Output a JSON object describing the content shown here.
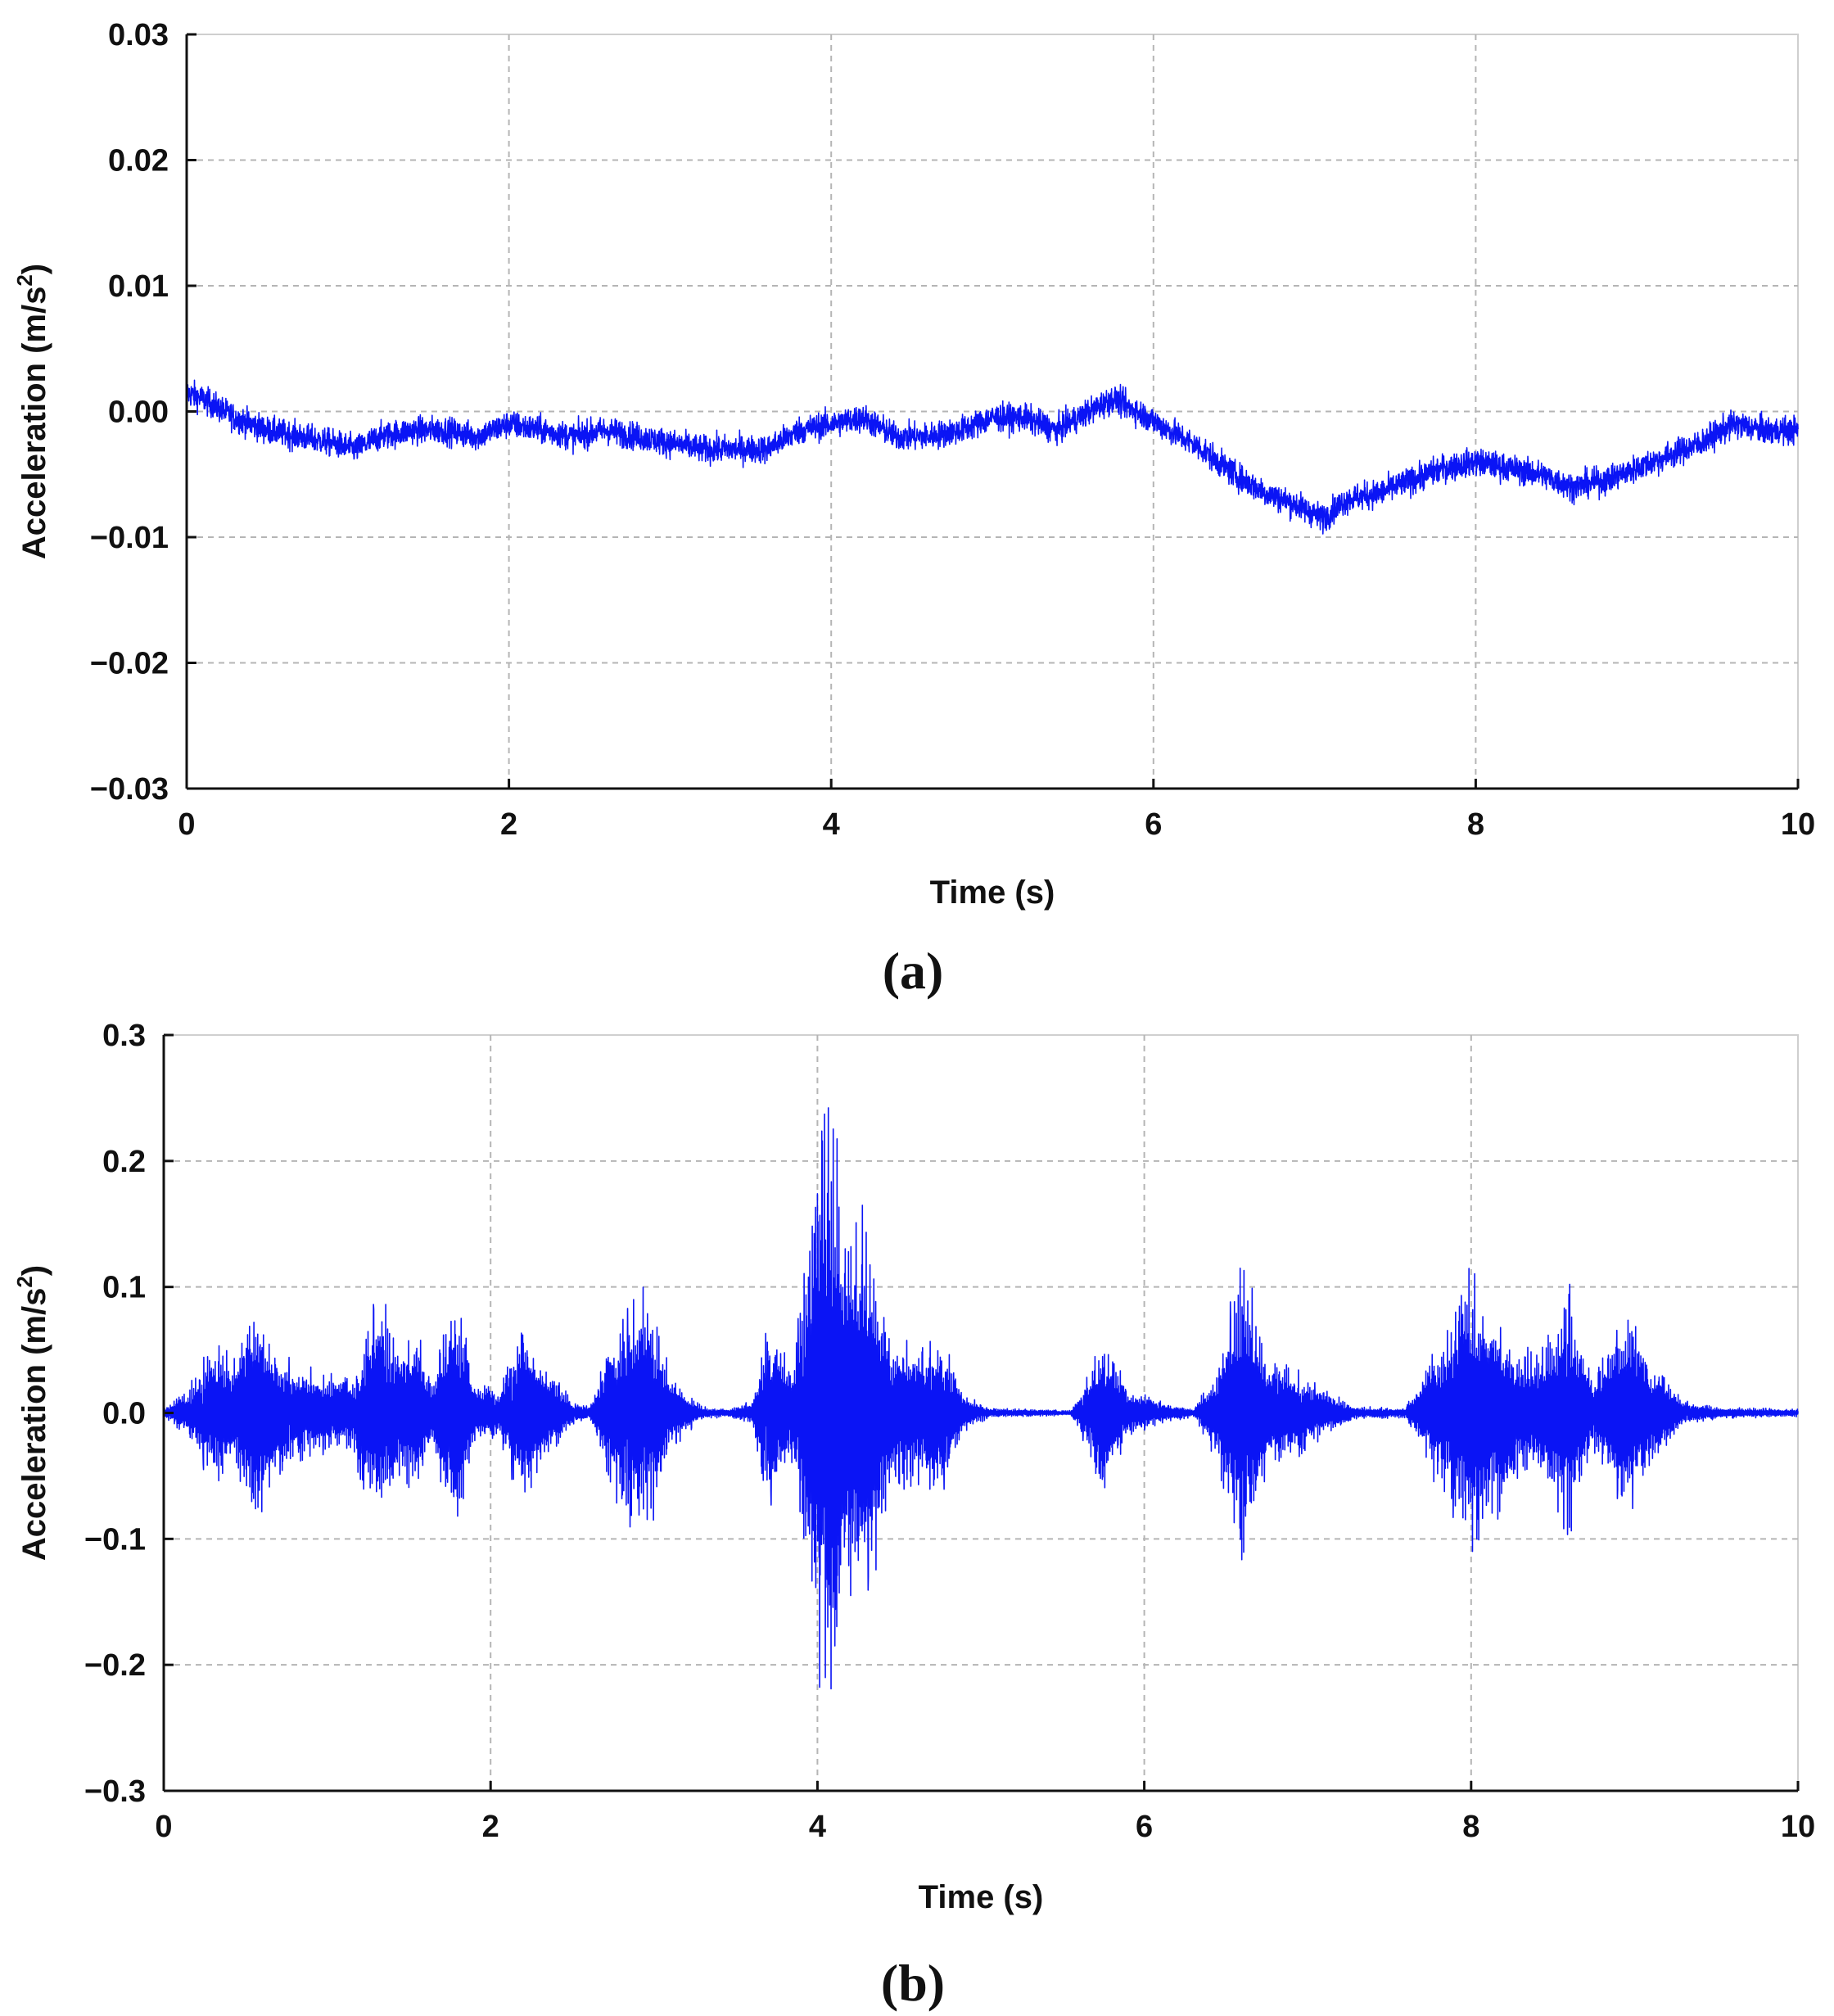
{
  "figure": {
    "panels": [
      "(a)",
      "(b)"
    ]
  },
  "colors": {
    "series": "#0a14f5",
    "axis": "#111111",
    "grid": "#b5b5b5"
  },
  "chart_data": [
    {
      "type": "line",
      "panel_label": "(a)",
      "xlabel": "Time (s)",
      "ylabel_main": "Acceleration (m/s",
      "ylabel_sup": "2",
      "ylabel_close": ")",
      "xlim": [
        0,
        10
      ],
      "ylim": [
        -0.03,
        0.03
      ],
      "xticks": [
        0,
        2,
        4,
        6,
        8,
        10
      ],
      "yticks": [
        -0.03,
        -0.02,
        -0.01,
        0.0,
        0.01,
        0.02,
        0.03
      ],
      "xtick_labels": [
        "0",
        "2",
        "4",
        "6",
        "8",
        "10"
      ],
      "ytick_labels": [
        "−0.03",
        "−0.02",
        "−0.01",
        "0.00",
        "0.01",
        "0.02",
        "0.03"
      ],
      "grid": true,
      "series": [
        {
          "x": [
            0,
            0.1,
            0.3,
            0.5,
            0.7,
            0.9,
            1.05,
            1.2,
            1.4,
            1.6,
            1.8,
            2.0,
            2.2,
            2.4,
            2.6,
            2.8,
            3.0,
            3.2,
            3.4,
            3.6,
            3.8,
            4.0,
            4.2,
            4.4,
            4.6,
            4.8,
            5.0,
            5.2,
            5.4,
            5.6,
            5.75,
            5.9,
            6.1,
            6.3,
            6.5,
            6.7,
            6.9,
            7.05,
            7.2,
            7.4,
            7.6,
            7.8,
            8.0,
            8.2,
            8.4,
            8.6,
            8.8,
            9.0,
            9.2,
            9.4,
            9.6,
            9.8,
            10.0
          ],
          "y": [
            0.0015,
            0.001,
            -0.0005,
            -0.0015,
            -0.002,
            -0.0025,
            -0.003,
            -0.002,
            -0.0015,
            -0.0015,
            -0.002,
            -0.001,
            -0.0015,
            -0.002,
            -0.0015,
            -0.002,
            -0.0025,
            -0.003,
            -0.003,
            -0.003,
            -0.0015,
            -0.001,
            -0.0005,
            -0.002,
            -0.002,
            -0.0015,
            -0.0005,
            -0.0005,
            -0.0015,
            0.0,
            0.001,
            0.0,
            -0.0015,
            -0.003,
            -0.005,
            -0.0065,
            -0.0075,
            -0.0085,
            -0.007,
            -0.0065,
            -0.0055,
            -0.0045,
            -0.004,
            -0.0045,
            -0.005,
            -0.006,
            -0.0055,
            -0.0045,
            -0.0035,
            -0.0025,
            -0.001,
            -0.0015,
            -0.0015
          ],
          "noise": 0.0017
        }
      ]
    },
    {
      "type": "line",
      "panel_label": "(b)",
      "xlabel": "Time (s)",
      "ylabel_main": "Acceleration (m/s",
      "ylabel_sup": "2",
      "ylabel_close": ")",
      "xlim": [
        0,
        10
      ],
      "ylim": [
        -0.3,
        0.3
      ],
      "xticks": [
        0,
        2,
        4,
        6,
        8,
        10
      ],
      "yticks": [
        -0.3,
        -0.2,
        -0.1,
        0.0,
        0.1,
        0.2,
        0.3
      ],
      "xtick_labels": [
        "0",
        "2",
        "4",
        "6",
        "8",
        "10"
      ],
      "ytick_labels": [
        "−0.3",
        "−0.2",
        "−0.1",
        "0.0",
        "0.1",
        "0.2",
        "0.3"
      ],
      "grid": true,
      "series": [
        {
          "envelope_x": [
            0,
            0.15,
            0.3,
            0.45,
            0.55,
            0.7,
            0.85,
            1.0,
            1.15,
            1.3,
            1.45,
            1.55,
            1.65,
            1.78,
            1.9,
            2.05,
            2.2,
            2.35,
            2.5,
            2.6,
            2.75,
            2.95,
            3.1,
            3.3,
            3.45,
            3.6,
            3.7,
            3.85,
            4.0,
            4.1,
            4.2,
            4.3,
            4.45,
            4.6,
            4.75,
            4.9,
            5.05,
            5.3,
            5.55,
            5.65,
            5.75,
            5.9,
            6.1,
            6.3,
            6.45,
            6.6,
            6.75,
            6.9,
            7.1,
            7.3,
            7.6,
            7.75,
            7.85,
            8.0,
            8.15,
            8.3,
            8.45,
            8.6,
            8.75,
            8.95,
            9.1,
            9.3,
            9.5,
            9.7,
            10.0
          ],
          "envelope_y": [
            0.003,
            0.02,
            0.06,
            0.05,
            0.1,
            0.05,
            0.04,
            0.035,
            0.03,
            0.1,
            0.06,
            0.07,
            0.03,
            0.11,
            0.03,
            0.02,
            0.085,
            0.04,
            0.01,
            0.005,
            0.07,
            0.11,
            0.03,
            0.005,
            0.003,
            0.01,
            0.08,
            0.04,
            0.22,
            0.26,
            0.15,
            0.16,
            0.07,
            0.06,
            0.07,
            0.015,
            0.004,
            0.003,
            0.002,
            0.03,
            0.07,
            0.02,
            0.01,
            0.003,
            0.04,
            0.14,
            0.05,
            0.04,
            0.02,
            0.005,
            0.004,
            0.05,
            0.07,
            0.13,
            0.08,
            0.05,
            0.06,
            0.1,
            0.03,
            0.09,
            0.05,
            0.01,
            0.005,
            0.004,
            0.003
          ]
        }
      ]
    }
  ]
}
